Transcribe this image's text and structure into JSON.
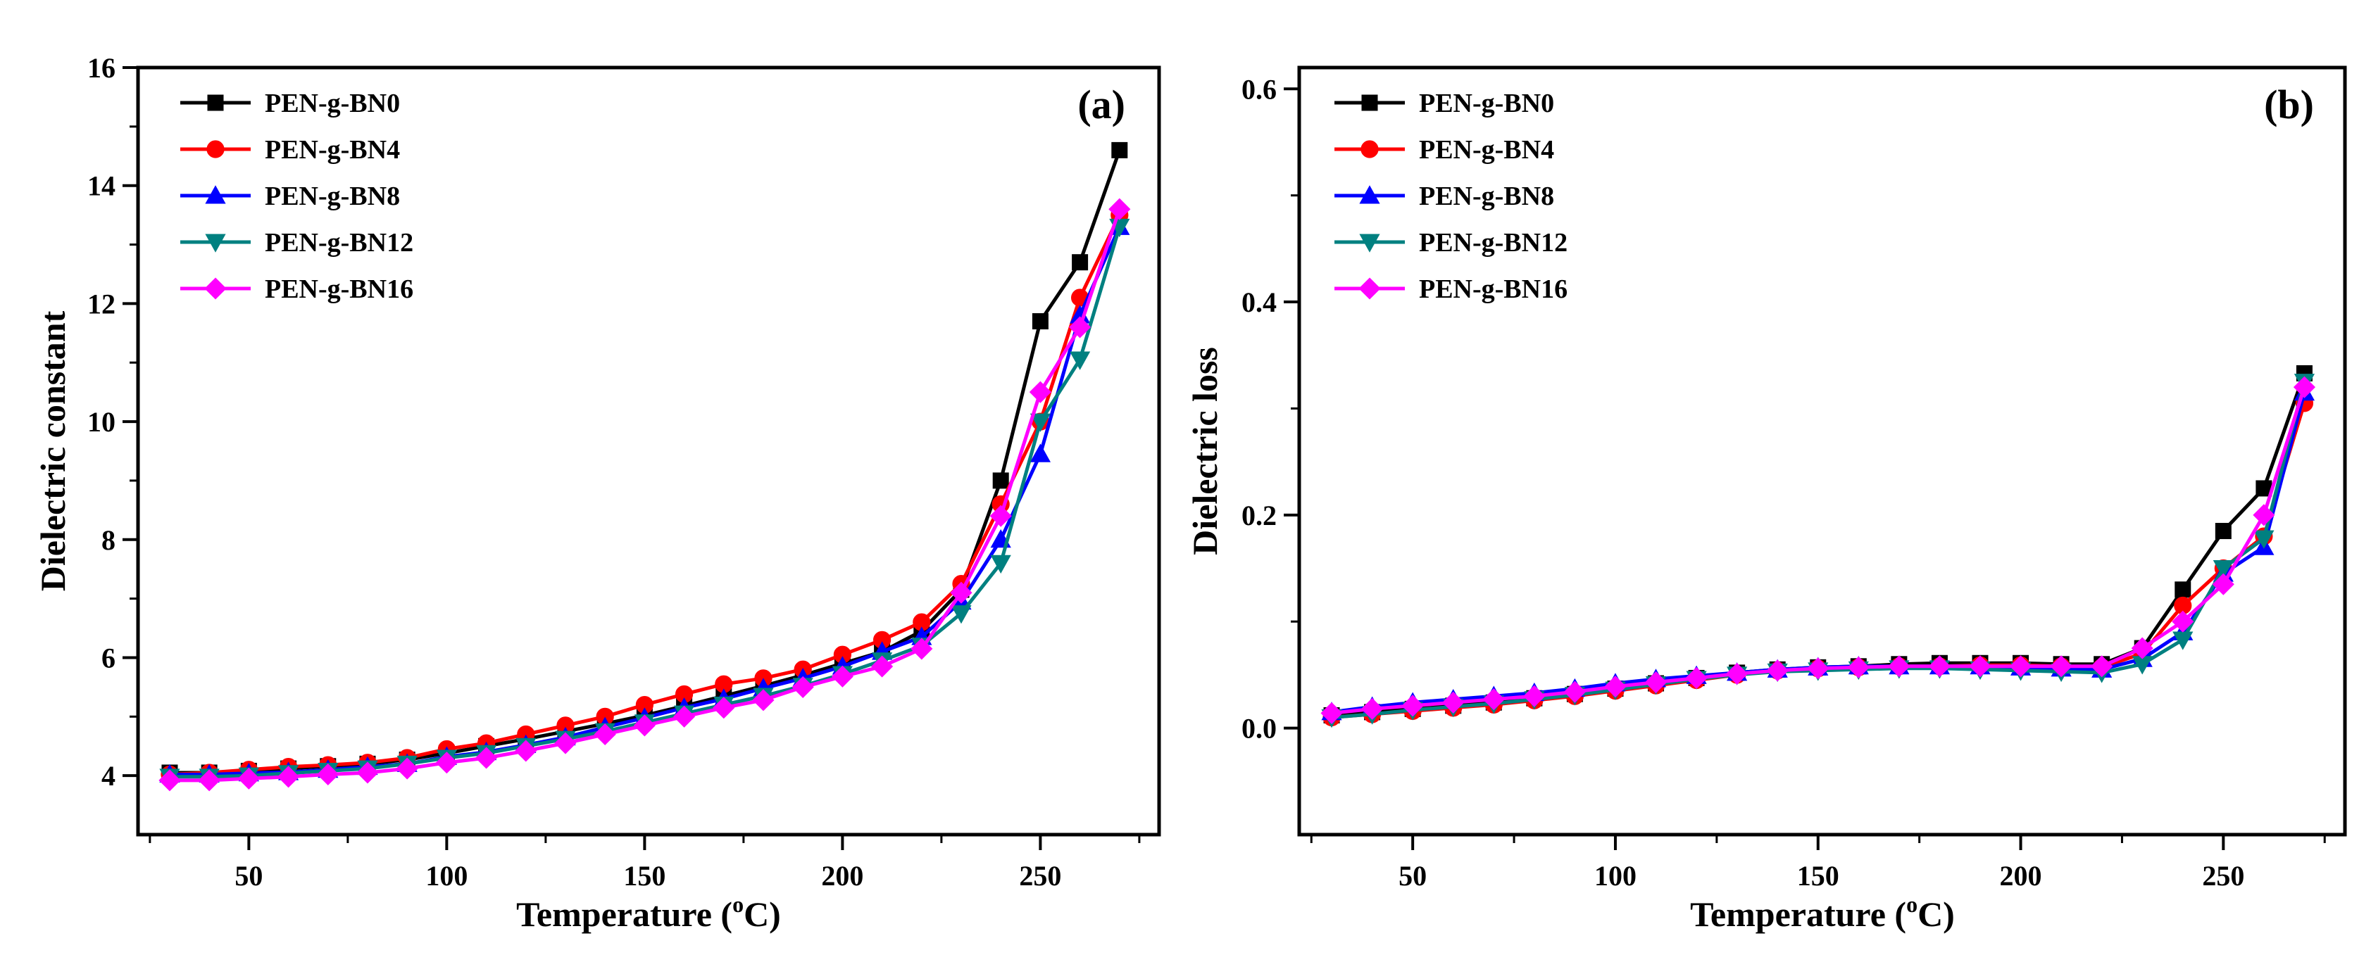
{
  "chart_data": [
    {
      "type": "line",
      "panel_label": "(a)",
      "xlabel": "Temperature (",
      "xlabel_sup": "o",
      "xlabel_end": "C)",
      "ylabel": "Dielectric constant",
      "xlim": [
        22,
        280
      ],
      "ylim": [
        3,
        16
      ],
      "xticks": [
        50,
        100,
        150,
        200,
        250
      ],
      "xtick_labels": [
        "50",
        "100",
        "150",
        "200",
        "250"
      ],
      "yticks": [
        4,
        6,
        8,
        10,
        12,
        14,
        16
      ],
      "ytick_labels": [
        "4",
        "6",
        "8",
        "10",
        "12",
        "14",
        "16"
      ],
      "legend_position": "top-left",
      "x": [
        30,
        40,
        50,
        60,
        70,
        80,
        90,
        100,
        110,
        120,
        130,
        140,
        150,
        160,
        170,
        180,
        190,
        200,
        210,
        220,
        230,
        240,
        250,
        260,
        270
      ],
      "series": [
        {
          "name": "PEN-g-BN0",
          "color": "#000000",
          "marker": "square",
          "values": [
            4.05,
            4.05,
            4.08,
            4.12,
            4.16,
            4.2,
            4.27,
            4.38,
            4.5,
            4.62,
            4.75,
            4.88,
            5.02,
            5.18,
            5.35,
            5.52,
            5.7,
            5.9,
            6.1,
            6.45,
            7.15,
            9.0,
            11.7,
            12.7,
            14.6
          ]
        },
        {
          "name": "PEN-g-BN4",
          "color": "#ff0000",
          "marker": "circle",
          "values": [
            4.02,
            4.05,
            4.1,
            4.15,
            4.18,
            4.22,
            4.3,
            4.45,
            4.55,
            4.7,
            4.85,
            5.0,
            5.2,
            5.38,
            5.55,
            5.65,
            5.8,
            6.05,
            6.3,
            6.6,
            7.25,
            8.6,
            10.0,
            12.1,
            13.5
          ]
        },
        {
          "name": "PEN-g-BN8",
          "color": "#0000ff",
          "marker": "triangle-up",
          "values": [
            4.02,
            4.02,
            4.04,
            4.06,
            4.1,
            4.15,
            4.2,
            4.32,
            4.4,
            4.52,
            4.65,
            4.82,
            4.98,
            5.15,
            5.3,
            5.48,
            5.65,
            5.85,
            6.1,
            6.35,
            6.95,
            8.0,
            9.45,
            11.8,
            13.3
          ]
        },
        {
          "name": "PEN-g-BN12",
          "color": "#008080",
          "marker": "triangle-down",
          "values": [
            3.98,
            3.98,
            4.0,
            4.04,
            4.08,
            4.12,
            4.2,
            4.3,
            4.38,
            4.5,
            4.62,
            4.75,
            4.9,
            5.05,
            5.2,
            5.35,
            5.52,
            5.72,
            5.95,
            6.2,
            6.75,
            7.6,
            10.0,
            11.05,
            13.3
          ]
        },
        {
          "name": "PEN-g-BN16",
          "color": "#ff00ff",
          "marker": "diamond",
          "values": [
            3.92,
            3.92,
            3.95,
            3.98,
            4.02,
            4.05,
            4.12,
            4.22,
            4.3,
            4.42,
            4.55,
            4.7,
            4.85,
            5.0,
            5.15,
            5.28,
            5.5,
            5.68,
            5.85,
            6.15,
            7.1,
            8.4,
            10.5,
            11.6,
            13.6
          ]
        }
      ]
    },
    {
      "type": "line",
      "panel_label": "(b)",
      "xlabel": "Temperature (",
      "xlabel_sup": "o",
      "xlabel_end": "C)",
      "ylabel": "Dielectric loss",
      "xlim": [
        22,
        280
      ],
      "ylim": [
        -0.1,
        0.62
      ],
      "xticks": [
        50,
        100,
        150,
        200,
        250
      ],
      "xtick_labels": [
        "50",
        "100",
        "150",
        "200",
        "250"
      ],
      "yticks": [
        0.0,
        0.2,
        0.4,
        0.6
      ],
      "ytick_labels": [
        "0.0",
        "0.2",
        "0.4",
        "0.6"
      ],
      "legend_position": "top-left",
      "x": [
        30,
        40,
        50,
        60,
        70,
        80,
        90,
        100,
        110,
        120,
        130,
        140,
        150,
        160,
        170,
        180,
        190,
        200,
        210,
        220,
        230,
        240,
        250,
        260,
        270
      ],
      "series": [
        {
          "name": "PEN-g-BN0",
          "color": "#000000",
          "marker": "square",
          "values": [
            0.012,
            0.015,
            0.018,
            0.021,
            0.024,
            0.028,
            0.032,
            0.037,
            0.042,
            0.047,
            0.052,
            0.055,
            0.057,
            0.058,
            0.06,
            0.061,
            0.061,
            0.061,
            0.06,
            0.06,
            0.075,
            0.13,
            0.185,
            0.225,
            0.333
          ]
        },
        {
          "name": "PEN-g-BN4",
          "color": "#ff0000",
          "marker": "circle",
          "values": [
            0.01,
            0.013,
            0.016,
            0.019,
            0.022,
            0.026,
            0.03,
            0.035,
            0.04,
            0.045,
            0.05,
            0.054,
            0.056,
            0.057,
            0.058,
            0.058,
            0.059,
            0.059,
            0.058,
            0.057,
            0.07,
            0.115,
            0.15,
            0.18,
            0.305
          ]
        },
        {
          "name": "PEN-g-BN8",
          "color": "#0000ff",
          "marker": "triangle-up",
          "values": [
            0.015,
            0.02,
            0.024,
            0.027,
            0.03,
            0.033,
            0.037,
            0.042,
            0.046,
            0.049,
            0.052,
            0.055,
            0.057,
            0.058,
            0.058,
            0.058,
            0.058,
            0.057,
            0.056,
            0.055,
            0.065,
            0.09,
            0.145,
            0.17,
            0.315
          ]
        },
        {
          "name": "PEN-g-BN12",
          "color": "#008080",
          "marker": "triangle-down",
          "values": [
            0.01,
            0.013,
            0.017,
            0.02,
            0.023,
            0.027,
            0.031,
            0.036,
            0.041,
            0.046,
            0.05,
            0.053,
            0.054,
            0.055,
            0.056,
            0.056,
            0.055,
            0.054,
            0.053,
            0.052,
            0.06,
            0.083,
            0.15,
            0.178,
            0.325
          ]
        },
        {
          "name": "PEN-g-BN16",
          "color": "#ff00ff",
          "marker": "diamond",
          "values": [
            0.014,
            0.018,
            0.021,
            0.024,
            0.027,
            0.03,
            0.034,
            0.039,
            0.043,
            0.047,
            0.051,
            0.054,
            0.056,
            0.057,
            0.058,
            0.058,
            0.058,
            0.058,
            0.058,
            0.058,
            0.075,
            0.1,
            0.135,
            0.2,
            0.32
          ]
        }
      ]
    }
  ]
}
